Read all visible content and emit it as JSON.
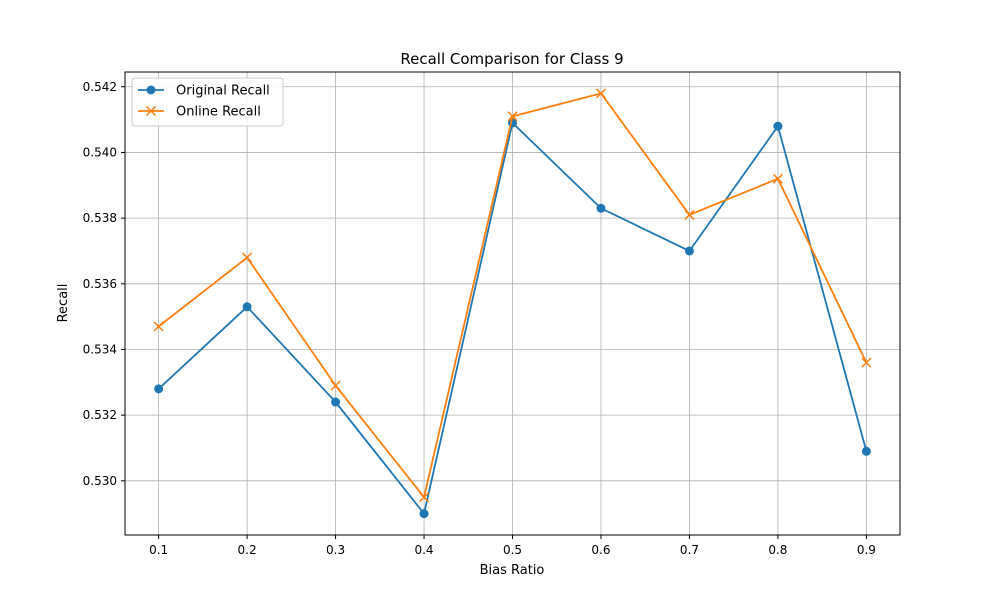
{
  "chart_data": {
    "type": "line",
    "title": "Recall Comparison for Class 9",
    "xlabel": "Bias Ratio",
    "ylabel": "Recall",
    "x": [
      0.1,
      0.2,
      0.3,
      0.4,
      0.5,
      0.6,
      0.7,
      0.8,
      0.9
    ],
    "x_ticks": [
      "0.1",
      "0.2",
      "0.3",
      "0.4",
      "0.5",
      "0.6",
      "0.7",
      "0.8",
      "0.9"
    ],
    "y_ticks": [
      "0.530",
      "0.532",
      "0.534",
      "0.536",
      "0.538",
      "0.540",
      "0.542"
    ],
    "xlim": [
      0.062,
      0.938
    ],
    "ylim": [
      0.52835,
      0.54245
    ],
    "grid": true,
    "legend_position": "top-left",
    "series": [
      {
        "name": "Original Recall",
        "color": "#1f77b4",
        "marker": "circle",
        "values": [
          0.5328,
          0.5353,
          0.5324,
          0.529,
          0.5409,
          0.5383,
          0.537,
          0.5408,
          0.5309
        ]
      },
      {
        "name": "Online Recall",
        "color": "#ff7f0e",
        "marker": "x",
        "values": [
          0.5347,
          0.5368,
          0.5329,
          0.5295,
          0.5411,
          0.5418,
          0.5381,
          0.5392,
          0.5336
        ]
      }
    ]
  }
}
